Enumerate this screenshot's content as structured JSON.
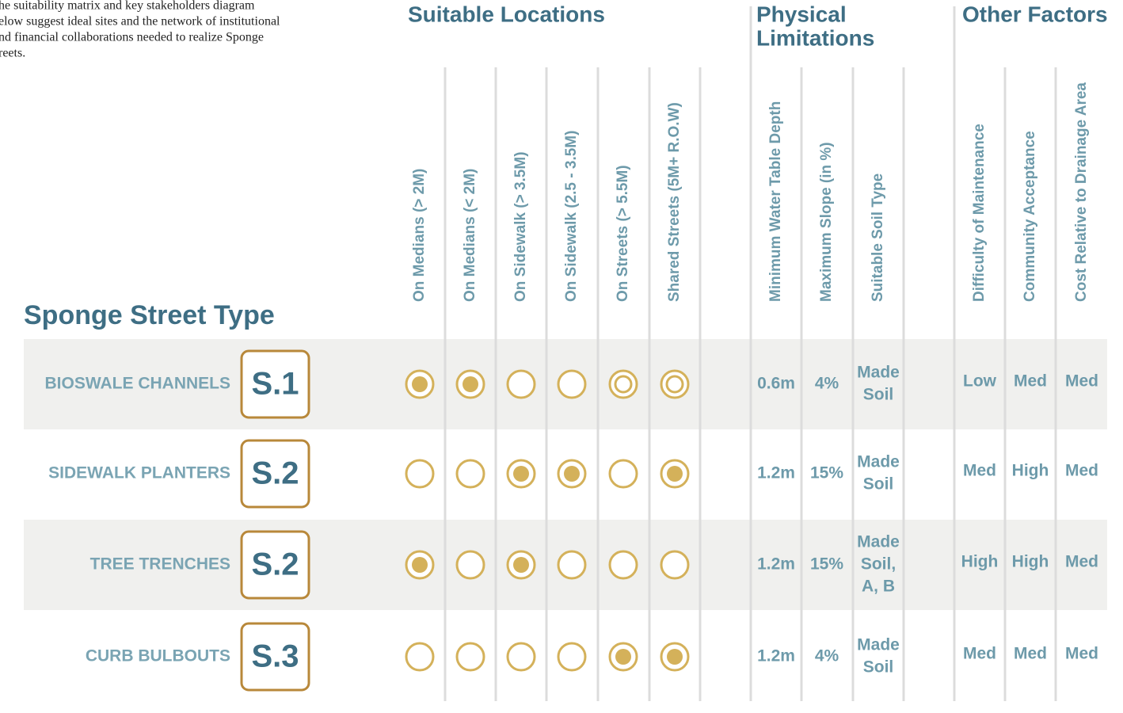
{
  "intro": [
    "he suitability matrix and key stakeholders diagram",
    "elow suggest ideal sites and the network of institutional",
    "nd financial collaborations needed to realize Sponge",
    "reets."
  ],
  "groups": {
    "locations": [
      "Suitable Locations"
    ],
    "physical": [
      "Physical",
      "Limitations"
    ],
    "other": [
      "Other Factors"
    ]
  },
  "row_header": "Sponge Street Type",
  "columns": {
    "locations": [
      "On Medians (> 2M)",
      "On Medians (< 2M)",
      "On Sidewalk (> 3.5M)",
      "On Sidewalk (2.5 - 3.5M)",
      "On Streets (> 5.5M)",
      "Shared Streets (5M+ R.O.W)"
    ],
    "physical": [
      "Minimum Water Table Depth",
      "Maximum Slope (in %)",
      "Suitable Soil Type"
    ],
    "other": [
      "Difficulty of Maintenance",
      "Community Acceptance",
      "Cost Relative to Drainage Area"
    ]
  },
  "rows": [
    {
      "name": "BIOSWALE CHANNELS",
      "code": "S.1",
      "locations": [
        "filled",
        "filled",
        "empty",
        "empty",
        "ring",
        "ring"
      ],
      "water": "0.6m",
      "slope": "4%",
      "soil": [
        "Made",
        "Soil"
      ],
      "maintenance": "Low",
      "acceptance": "Med",
      "cost": "Med"
    },
    {
      "name": "SIDEWALK PLANTERS",
      "code": "S.2",
      "locations": [
        "empty",
        "empty",
        "filled",
        "filled",
        "empty",
        "filled"
      ],
      "water": "1.2m",
      "slope": "15%",
      "soil": [
        "Made",
        "Soil"
      ],
      "maintenance": "Med",
      "acceptance": "High",
      "cost": "Med"
    },
    {
      "name": "TREE TRENCHES",
      "code": "S.2",
      "locations": [
        "filled",
        "empty",
        "filled",
        "empty",
        "empty",
        "empty"
      ],
      "water": "1.2m",
      "slope": "15%",
      "soil": [
        "Made",
        "Soil,",
        "A, B"
      ],
      "maintenance": "High",
      "acceptance": "High",
      "cost": "Med"
    },
    {
      "name": "CURB BULBOUTS",
      "code": "S.3",
      "locations": [
        "empty",
        "empty",
        "empty",
        "empty",
        "filled",
        "filled"
      ],
      "water": "1.2m",
      "slope": "4%",
      "soil": [
        "Made",
        "Soil"
      ],
      "maintenance": "Med",
      "acceptance": "Med",
      "cost": "Med"
    }
  ]
}
